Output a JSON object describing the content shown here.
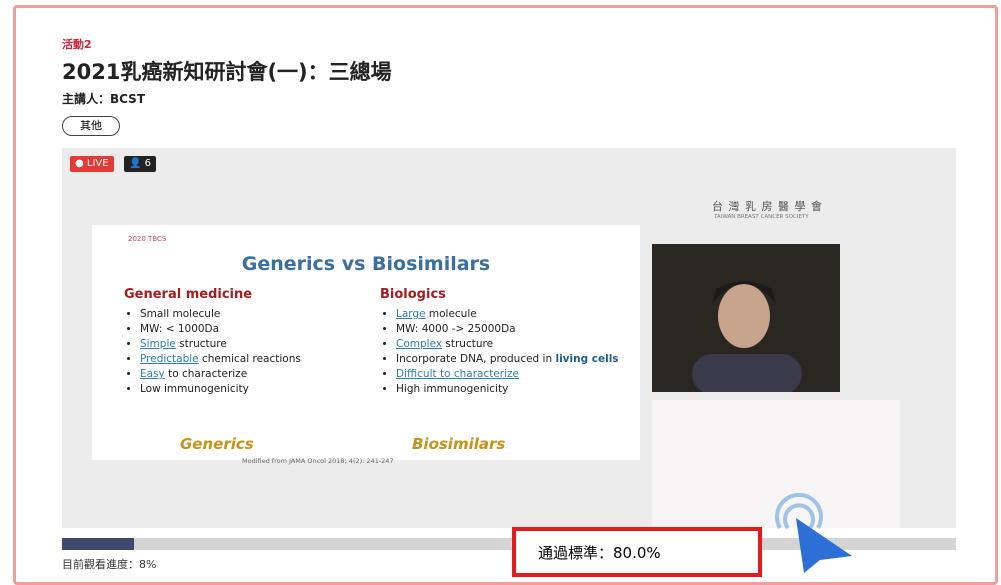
{
  "activity": "活動2",
  "title": "2021乳癌新知研討會(一)：三總場",
  "speaker": "主講人：BCST",
  "tag": "其他",
  "live": {
    "badge": "LIVE",
    "viewers": "6"
  },
  "slide": {
    "logo": "2020 TBCS",
    "title": "Generics vs Biosimilars",
    "left": {
      "heading": "General medicine",
      "items": [
        {
          "text": "Small molecule"
        },
        {
          "text": "MW: < 1000Da"
        },
        {
          "em": "Simple",
          "text": " structure"
        },
        {
          "em": "Predictable",
          "text": " chemical reactions"
        },
        {
          "em": "Easy",
          "text": " to characterize"
        },
        {
          "text": "Low immunogenicity"
        }
      ],
      "footer": "Generics"
    },
    "right": {
      "heading": "Biologics",
      "items": [
        {
          "em": "Large",
          "text": " molecule"
        },
        {
          "text": "MW: 4000 -> 25000Da"
        },
        {
          "em": "Complex",
          "text": " structure"
        },
        {
          "text": "Incorporate DNA, produced in ",
          "strong": "living cells"
        },
        {
          "em": "Difficult to characterize"
        },
        {
          "text": "High immunogenicity"
        }
      ],
      "footer": "Biosimilars"
    },
    "source": "Modified from JAMA Oncol 2018; 4(2): 241-247"
  },
  "society": {
    "name": "台 灣 乳 房 醫 學 會",
    "english": "TAIWAN BREAST CANCER SOCIETY"
  },
  "progress": {
    "label": "目前觀看進度：8%",
    "value": 8
  },
  "pass": "通過標準：80.0%"
}
